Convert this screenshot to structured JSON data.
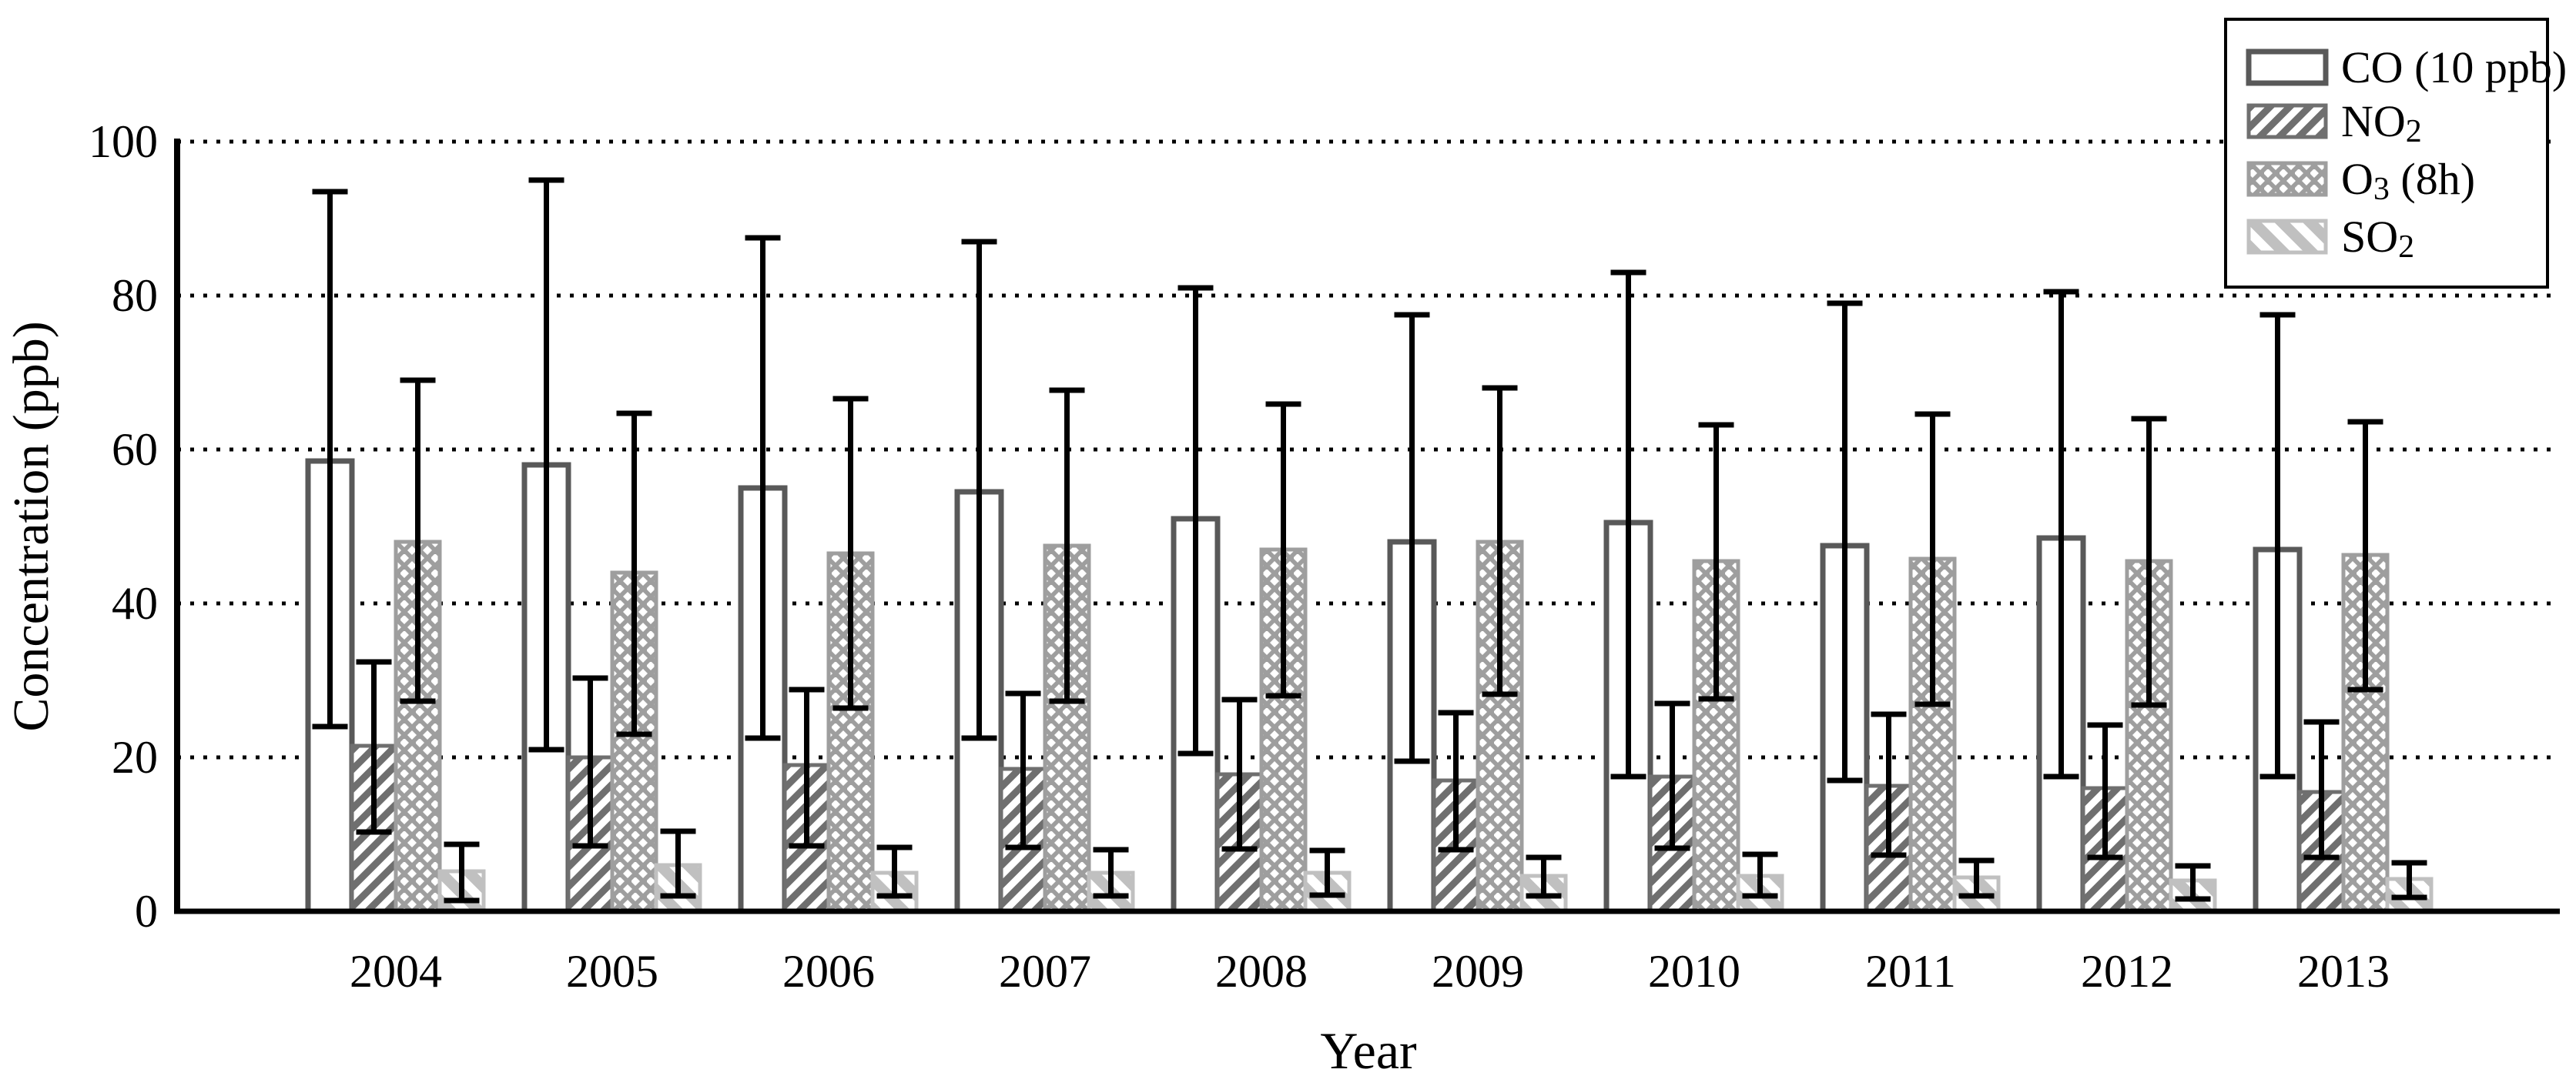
{
  "figure": {
    "background": "#ffffff",
    "text_color": "#000000",
    "axis_color": "#000000",
    "error_bar_color": "#000000"
  },
  "chart_data": {
    "type": "bar",
    "title": "",
    "xlabel": "Year",
    "ylabel": "Concentration (ppb)",
    "ylim": [
      0,
      100
    ],
    "yticks": [
      0,
      20,
      40,
      60,
      80,
      100
    ],
    "grid": "horizontal dotted lines at each y tick",
    "legend_position": "top-right",
    "categories": [
      "2004",
      "2005",
      "2006",
      "2007",
      "2008",
      "2009",
      "2010",
      "2011",
      "2012",
      "2013"
    ],
    "series": [
      {
        "name": "CO (10 ppb)",
        "label_segments": [
          [
            "CO (10 ppb)",
            false
          ]
        ],
        "pattern": "none",
        "fill": "#ffffff",
        "edge": "#595959",
        "values": [
          58.5,
          58.0,
          55.0,
          54.5,
          51.0,
          48.0,
          50.5,
          47.5,
          48.5,
          47.0
        ],
        "err_low": [
          24.0,
          21.0,
          22.5,
          22.5,
          20.5,
          19.5,
          17.5,
          17.0,
          17.5,
          17.5
        ],
        "err_high": [
          93.5,
          95.0,
          87.5,
          87.0,
          81.0,
          77.5,
          83.0,
          79.0,
          80.5,
          77.5
        ]
      },
      {
        "name": "NO2",
        "label_segments": [
          [
            "NO",
            false
          ],
          [
            "2",
            true
          ]
        ],
        "pattern": "diag-up",
        "fill": "#ffffff",
        "edge": "#6f6f6f",
        "values": [
          21.5,
          20.0,
          19.0,
          18.5,
          17.8,
          17.0,
          17.5,
          16.3,
          16.0,
          15.5
        ],
        "err_low": [
          10.3,
          8.5,
          8.5,
          8.3,
          8.1,
          8.0,
          8.2,
          7.3,
          7.0,
          7.0
        ],
        "err_high": [
          32.4,
          30.3,
          28.8,
          28.3,
          27.5,
          25.8,
          27.0,
          25.6,
          24.2,
          24.6
        ]
      },
      {
        "name": "O3 (8h)",
        "label_segments": [
          [
            "O",
            false
          ],
          [
            "3",
            true
          ],
          [
            " (8h)",
            false
          ]
        ],
        "pattern": "diamond",
        "fill": "#9e9e9e",
        "edge": "#9e9e9e",
        "values": [
          48.0,
          44.0,
          46.5,
          47.5,
          47.0,
          48.0,
          45.5,
          45.8,
          45.5,
          46.3
        ],
        "err_low": [
          27.3,
          23.0,
          26.4,
          27.3,
          28.0,
          28.2,
          27.6,
          26.9,
          26.8,
          28.8
        ],
        "err_high": [
          69.0,
          64.7,
          66.6,
          67.7,
          65.9,
          68.0,
          63.2,
          64.6,
          64.0,
          63.6
        ]
      },
      {
        "name": "SO2",
        "label_segments": [
          [
            "SO",
            false
          ],
          [
            "2",
            true
          ]
        ],
        "pattern": "diag-down",
        "fill": "#c0c0c0",
        "edge": "#c0c0c0",
        "values": [
          5.2,
          6.0,
          5.0,
          5.0,
          5.0,
          4.6,
          4.6,
          4.4,
          4.0,
          4.2
        ],
        "err_low": [
          1.4,
          2.0,
          2.0,
          2.0,
          2.1,
          2.0,
          2.0,
          2.0,
          1.6,
          1.8
        ],
        "err_high": [
          8.7,
          10.4,
          8.3,
          8.0,
          7.9,
          7.0,
          7.4,
          6.6,
          5.9,
          6.3
        ]
      }
    ]
  }
}
